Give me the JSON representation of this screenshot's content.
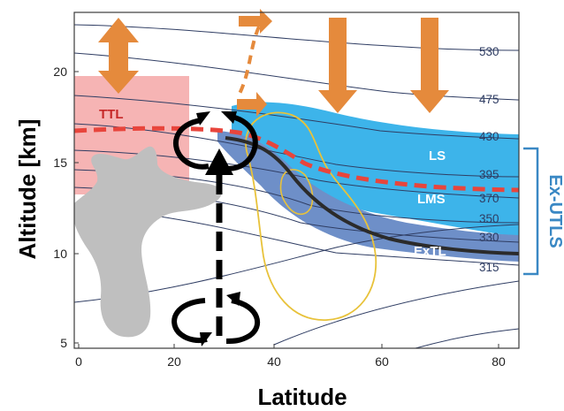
{
  "axes": {
    "xlabel": "Latitude",
    "ylabel": "Altitude [km]",
    "x_ticks": [
      "0",
      "20",
      "40",
      "60",
      "80"
    ],
    "y_ticks": [
      "5",
      "10",
      "15",
      "20"
    ]
  },
  "contours": {
    "labels": [
      "530",
      "475",
      "430",
      "395",
      "370",
      "350",
      "330",
      "315"
    ]
  },
  "regions": {
    "ttl": "TTL",
    "ls": "LS",
    "lms": "LMS",
    "extl": "ExTL"
  },
  "bracket": {
    "label": "Ex-UTLS"
  },
  "colors": {
    "ttl_box": "#f4a7a7",
    "ls_fill": "#3db4ea",
    "lms_fill": "#6e8fc8",
    "tropopause_dashed": "#e8453c",
    "extl_line": "#2b2b2b",
    "arrows": "#e58a3c",
    "convection": "#bfbfbf",
    "yellow_contour": "#e8c23a",
    "bracket": "#3a88c4"
  },
  "icons": {
    "vertical_arrows": "orange-block-arrow-icon",
    "poleward_arrows": "orange-block-arrow-right-icon",
    "circulation": "circular-arrow-icon"
  }
}
